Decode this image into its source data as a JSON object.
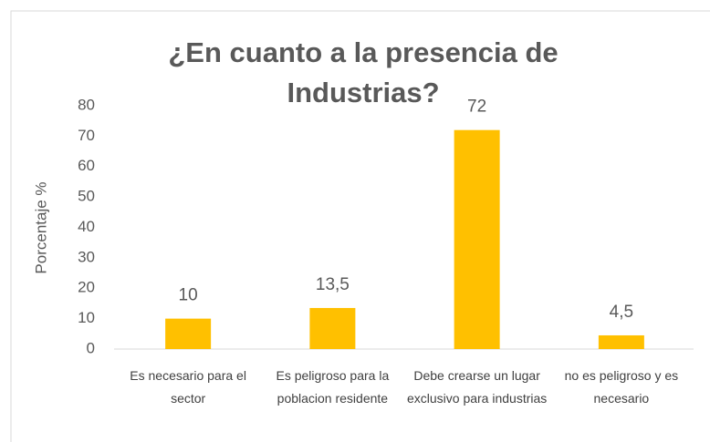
{
  "chart_data": {
    "type": "bar",
    "title": "¿En cuanto a la presencia de Industrias?",
    "y_label": "Porcentaje %",
    "categories": [
      "Es necesario para el sector",
      "Es peligroso para la poblacion residente",
      "Debe crearse un lugar exclusivo para industrias",
      "no es peligroso y es necesario"
    ],
    "values": [
      10,
      13.5,
      72,
      4.5
    ],
    "value_labels": [
      "10",
      "13,5",
      "72",
      "4,5"
    ],
    "color": "#ffc000",
    "ylim": [
      0,
      80
    ],
    "yticks": [
      0,
      10,
      20,
      30,
      40,
      50,
      60,
      70,
      80
    ],
    "grid": false
  }
}
